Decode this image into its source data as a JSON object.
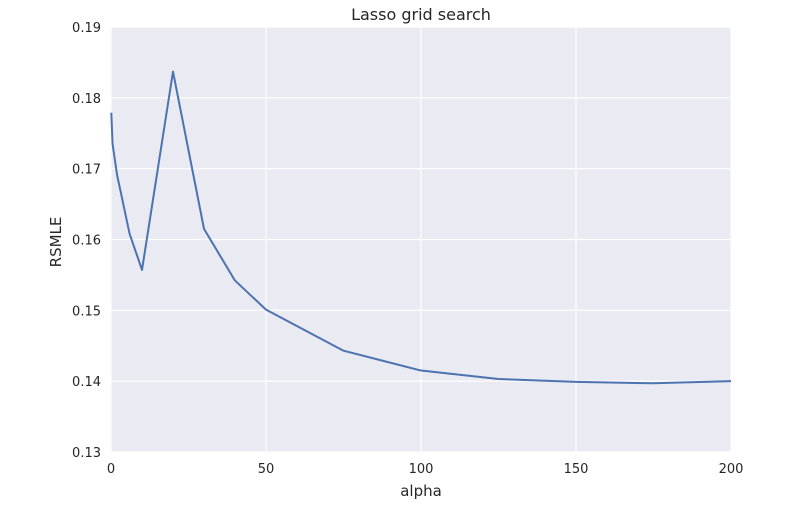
{
  "chart_data": {
    "type": "line",
    "title": "Lasso grid search",
    "xlabel": "alpha",
    "ylabel": "RSMLE",
    "xlim": [
      0,
      200
    ],
    "ylim": [
      0.13,
      0.19
    ],
    "xticks": [
      "0",
      "50",
      "100",
      "150",
      "200"
    ],
    "yticks": [
      "0.13",
      "0.14",
      "0.15",
      "0.16",
      "0.17",
      "0.18",
      "0.19"
    ],
    "grid": true,
    "legend": "none",
    "colors": {
      "background": "#eaeaf2",
      "grid": "#ffffff",
      "line": "#4c72b0"
    },
    "series": [
      {
        "x": [
          0.1,
          0.5,
          1,
          2,
          3,
          6,
          10,
          20,
          30,
          40,
          50,
          75,
          100,
          125,
          150,
          175,
          200
        ],
        "y": [
          0.1779,
          0.1735,
          0.172,
          0.169,
          0.167,
          0.1608,
          0.1557,
          0.1837,
          0.1615,
          0.1542,
          0.1501,
          0.1443,
          0.1415,
          0.1403,
          0.1399,
          0.1397,
          0.14
        ]
      }
    ]
  }
}
